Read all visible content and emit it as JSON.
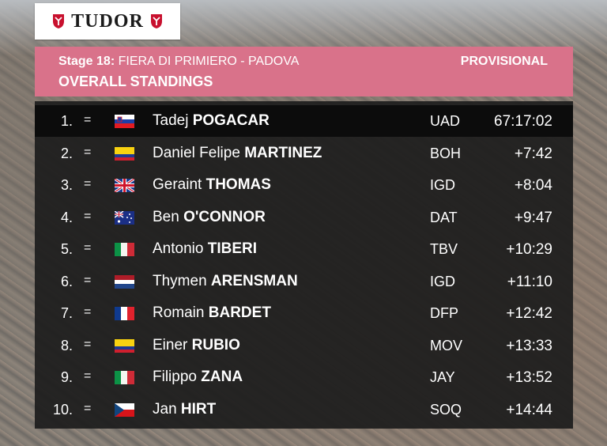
{
  "sponsor": {
    "name": "TUDOR"
  },
  "header": {
    "stage_label": "Stage 18:",
    "route": "FIERA DI PRIMIERO - PADOVA",
    "status": "PROVISIONAL",
    "title": "OVERALL STANDINGS"
  },
  "standings": [
    {
      "pos": "1.",
      "change": "=",
      "flag": "slovenia",
      "first": "Tadej",
      "last": "POGACAR",
      "team": "UAD",
      "time": "67:17:02"
    },
    {
      "pos": "2.",
      "change": "=",
      "flag": "colombia",
      "first": "Daniel Felipe",
      "last": "MARTINEZ",
      "team": "BOH",
      "time": "+7:42"
    },
    {
      "pos": "3.",
      "change": "=",
      "flag": "united-kingdom",
      "first": "Geraint",
      "last": "THOMAS",
      "team": "IGD",
      "time": "+8:04"
    },
    {
      "pos": "4.",
      "change": "=",
      "flag": "australia",
      "first": "Ben",
      "last": "O'CONNOR",
      "team": "DAT",
      "time": "+9:47"
    },
    {
      "pos": "5.",
      "change": "=",
      "flag": "italy",
      "first": "Antonio",
      "last": "TIBERI",
      "team": "TBV",
      "time": "+10:29"
    },
    {
      "pos": "6.",
      "change": "=",
      "flag": "netherlands",
      "first": "Thymen",
      "last": "ARENSMAN",
      "team": "IGD",
      "time": "+11:10"
    },
    {
      "pos": "7.",
      "change": "=",
      "flag": "france",
      "first": "Romain",
      "last": "BARDET",
      "team": "DFP",
      "time": "+12:42"
    },
    {
      "pos": "8.",
      "change": "=",
      "flag": "colombia",
      "first": "Einer",
      "last": "RUBIO",
      "team": "MOV",
      "time": "+13:33"
    },
    {
      "pos": "9.",
      "change": "=",
      "flag": "italy",
      "first": "Filippo",
      "last": "ZANA",
      "team": "JAY",
      "time": "+13:52"
    },
    {
      "pos": "10.",
      "change": "=",
      "flag": "czechia",
      "first": "Jan",
      "last": "HIRT",
      "team": "SOQ",
      "time": "+14:44"
    }
  ],
  "colors": {
    "header_bg": "#d9728a",
    "table_bg": "#1c1c1c",
    "leader_row_bg": "#0c0c0c",
    "text": "#ffffff",
    "sponsor_red": "#c8102e"
  }
}
